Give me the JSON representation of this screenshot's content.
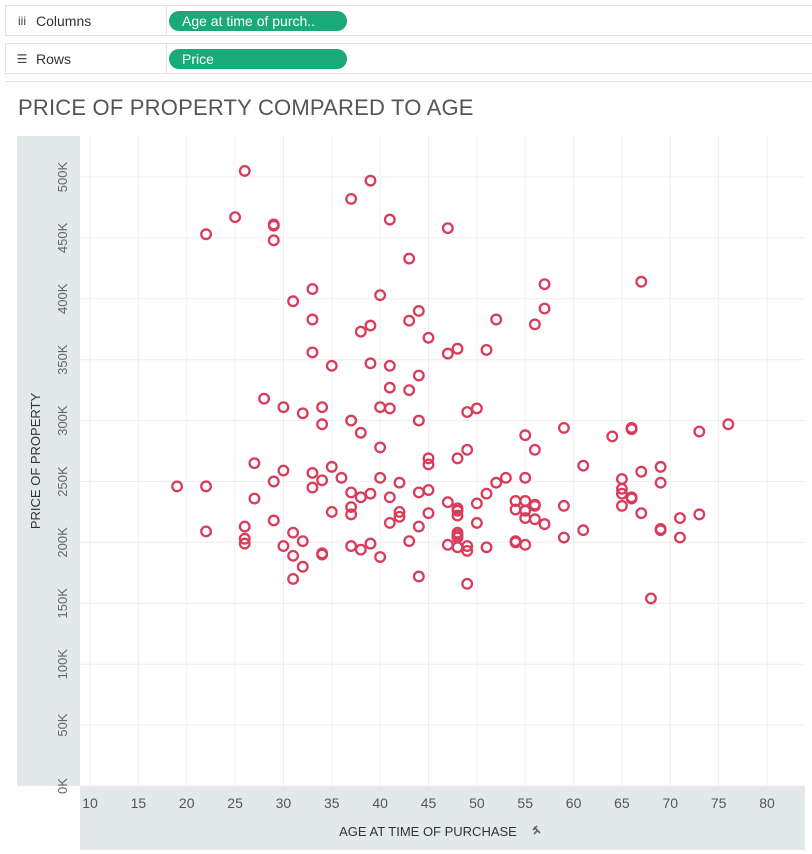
{
  "shelves": {
    "columns": {
      "label": "Columns",
      "icon": "columns-icon",
      "pill": "Age at time of purch.."
    },
    "rows": {
      "label": "Rows",
      "icon": "rows-icon",
      "pill": "Price"
    }
  },
  "colors": {
    "pill": "#1aa979",
    "mark": "#d93c5a",
    "axis_band": "#e3e9ea"
  },
  "chart_data": {
    "type": "scatter",
    "title": "PRICE OF PROPERTY COMPARED TO AGE",
    "xlabel": "AGE AT TIME OF PURCHASE",
    "ylabel": "PRICE OF PROPERTY",
    "xlim": [
      8,
      80
    ],
    "ylim": [
      0,
      510000
    ],
    "xticks": [
      10,
      15,
      20,
      25,
      30,
      35,
      40,
      45,
      50,
      55,
      60,
      65,
      70,
      75,
      80
    ],
    "yticks": [
      0,
      50000,
      100000,
      150000,
      200000,
      250000,
      300000,
      350000,
      400000,
      450000,
      500000
    ],
    "ytick_labels": [
      "0K",
      "50K",
      "100K",
      "150K",
      "200K",
      "250K",
      "300K",
      "350K",
      "400K",
      "450K",
      "500K"
    ],
    "grid": true,
    "marker": "open-circle",
    "points": [
      [
        26,
        505000
      ],
      [
        39,
        497000
      ],
      [
        37,
        482000
      ],
      [
        25,
        467000
      ],
      [
        41,
        465000
      ],
      [
        29,
        461000
      ],
      [
        29,
        460000
      ],
      [
        47,
        458000
      ],
      [
        22,
        453000
      ],
      [
        29,
        448000
      ],
      [
        43,
        433000
      ],
      [
        33,
        408000
      ],
      [
        57,
        412000
      ],
      [
        67,
        414000
      ],
      [
        40,
        403000
      ],
      [
        31,
        398000
      ],
      [
        57,
        392000
      ],
      [
        44,
        390000
      ],
      [
        33,
        383000
      ],
      [
        43,
        382000
      ],
      [
        52,
        383000
      ],
      [
        56,
        379000
      ],
      [
        39,
        378000
      ],
      [
        38,
        373000
      ],
      [
        45,
        368000
      ],
      [
        48,
        359000
      ],
      [
        51,
        358000
      ],
      [
        33,
        356000
      ],
      [
        47,
        355000
      ],
      [
        39,
        347000
      ],
      [
        35,
        345000
      ],
      [
        41,
        345000
      ],
      [
        44,
        337000
      ],
      [
        41,
        327000
      ],
      [
        43,
        325000
      ],
      [
        28,
        318000
      ],
      [
        30,
        311000
      ],
      [
        34,
        311000
      ],
      [
        40,
        311000
      ],
      [
        41,
        310000
      ],
      [
        50,
        310000
      ],
      [
        49,
        307000
      ],
      [
        32,
        306000
      ],
      [
        37,
        300000
      ],
      [
        44,
        300000
      ],
      [
        34,
        297000
      ],
      [
        76,
        297000
      ],
      [
        59,
        294000
      ],
      [
        66,
        294000
      ],
      [
        66,
        293000
      ],
      [
        73,
        291000
      ],
      [
        38,
        290000
      ],
      [
        55,
        288000
      ],
      [
        64,
        287000
      ],
      [
        40,
        278000
      ],
      [
        49,
        276000
      ],
      [
        56,
        276000
      ],
      [
        45,
        269000
      ],
      [
        48,
        269000
      ],
      [
        45,
        264000
      ],
      [
        27,
        265000
      ],
      [
        61,
        263000
      ],
      [
        69,
        262000
      ],
      [
        35,
        262000
      ],
      [
        30,
        259000
      ],
      [
        33,
        257000
      ],
      [
        67,
        258000
      ],
      [
        36,
        253000
      ],
      [
        40,
        253000
      ],
      [
        53,
        253000
      ],
      [
        55,
        253000
      ],
      [
        65,
        252000
      ],
      [
        34,
        251000
      ],
      [
        29,
        250000
      ],
      [
        42,
        249000
      ],
      [
        52,
        249000
      ],
      [
        69,
        249000
      ],
      [
        19,
        246000
      ],
      [
        22,
        246000
      ],
      [
        33,
        245000
      ],
      [
        65,
        244000
      ],
      [
        45,
        243000
      ],
      [
        37,
        241000
      ],
      [
        39,
        240000
      ],
      [
        44,
        241000
      ],
      [
        51,
        240000
      ],
      [
        65,
        240000
      ],
      [
        38,
        237000
      ],
      [
        41,
        237000
      ],
      [
        66,
        237000
      ],
      [
        66,
        236000
      ],
      [
        27,
        236000
      ],
      [
        54,
        234000
      ],
      [
        55,
        234000
      ],
      [
        47,
        233000
      ],
      [
        50,
        232000
      ],
      [
        56,
        231000
      ],
      [
        56,
        230000
      ],
      [
        59,
        230000
      ],
      [
        65,
        230000
      ],
      [
        37,
        229000
      ],
      [
        48,
        228000
      ],
      [
        48,
        226000
      ],
      [
        54,
        227000
      ],
      [
        55,
        226000
      ],
      [
        35,
        225000
      ],
      [
        42,
        225000
      ],
      [
        45,
        224000
      ],
      [
        67,
        224000
      ],
      [
        73,
        223000
      ],
      [
        37,
        223000
      ],
      [
        42,
        221000
      ],
      [
        48,
        222000
      ],
      [
        55,
        220000
      ],
      [
        56,
        219000
      ],
      [
        71,
        220000
      ],
      [
        29,
        218000
      ],
      [
        41,
        216000
      ],
      [
        50,
        216000
      ],
      [
        57,
        215000
      ],
      [
        44,
        213000
      ],
      [
        26,
        213000
      ],
      [
        22,
        209000
      ],
      [
        31,
        208000
      ],
      [
        48,
        208000
      ],
      [
        61,
        210000
      ],
      [
        69,
        211000
      ],
      [
        69,
        210000
      ],
      [
        48,
        206000
      ],
      [
        48,
        204000
      ],
      [
        59,
        204000
      ],
      [
        71,
        204000
      ],
      [
        26,
        203000
      ],
      [
        32,
        201000
      ],
      [
        43,
        201000
      ],
      [
        54,
        201000
      ],
      [
        54,
        200000
      ],
      [
        26,
        199000
      ],
      [
        39,
        199000
      ],
      [
        55,
        198000
      ],
      [
        30,
        197000
      ],
      [
        37,
        197000
      ],
      [
        47,
        198000
      ],
      [
        49,
        197000
      ],
      [
        51,
        196000
      ],
      [
        48,
        196000
      ],
      [
        49,
        193000
      ],
      [
        38,
        194000
      ],
      [
        34,
        191000
      ],
      [
        34,
        190000
      ],
      [
        31,
        189000
      ],
      [
        40,
        188000
      ],
      [
        32,
        180000
      ],
      [
        44,
        172000
      ],
      [
        31,
        170000
      ],
      [
        49,
        166000
      ],
      [
        68,
        154000
      ]
    ]
  }
}
